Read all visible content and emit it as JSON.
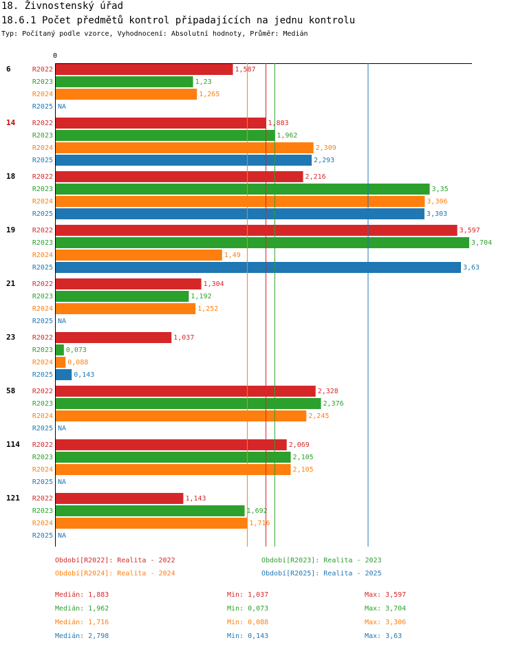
{
  "page": {
    "title": "18. Živnostenský úřad",
    "subtitle": "18.6.1 Počet předmětů kontrol připadajících na jednu kontrolu",
    "meta": "Typ: Počítaný podle vzorce, Vyhodnocení: Absolutní hodnoty, Průměr: Medián"
  },
  "colors": {
    "R2022": "#d62728",
    "R2023": "#2ca02c",
    "R2024": "#ff7f0e",
    "R2025": "#1f77b4",
    "highlight": "#cc0000"
  },
  "chart_data": {
    "type": "bar",
    "orientation": "horizontal",
    "x_tick_label": "0",
    "xlim": [
      0,
      3.704
    ],
    "series_names": [
      "R2022",
      "R2023",
      "R2024",
      "R2025"
    ],
    "groups": [
      {
        "label": "6",
        "highlight": false,
        "values": [
          1.587,
          1.23,
          1.265,
          null
        ],
        "labels": [
          "1,587",
          "1,23",
          "1,265",
          "NA"
        ]
      },
      {
        "label": "14",
        "highlight": true,
        "values": [
          1.883,
          1.962,
          2.309,
          2.293
        ],
        "labels": [
          "1,883",
          "1,962",
          "2,309",
          "2,293"
        ]
      },
      {
        "label": "18",
        "highlight": false,
        "values": [
          2.216,
          3.35,
          3.306,
          3.303
        ],
        "labels": [
          "2,216",
          "3,35",
          "3,306",
          "3,303"
        ]
      },
      {
        "label": "19",
        "highlight": false,
        "values": [
          3.597,
          3.704,
          1.49,
          3.63
        ],
        "labels": [
          "3,597",
          "3,704",
          "1,49",
          "3,63"
        ]
      },
      {
        "label": "21",
        "highlight": false,
        "values": [
          1.304,
          1.192,
          1.252,
          null
        ],
        "labels": [
          "1,304",
          "1,192",
          "1,252",
          "NA"
        ]
      },
      {
        "label": "23",
        "highlight": false,
        "values": [
          1.037,
          0.073,
          0.088,
          0.143
        ],
        "labels": [
          "1,037",
          "0,073",
          "0,088",
          "0,143"
        ]
      },
      {
        "label": "58",
        "highlight": false,
        "values": [
          2.328,
          2.376,
          2.245,
          null
        ],
        "labels": [
          "2,328",
          "2,376",
          "2,245",
          "NA"
        ]
      },
      {
        "label": "114",
        "highlight": false,
        "values": [
          2.069,
          2.105,
          2.105,
          null
        ],
        "labels": [
          "2,069",
          "2,105",
          "2,105",
          "NA"
        ]
      },
      {
        "label": "121",
        "highlight": false,
        "values": [
          1.143,
          1.692,
          1.716,
          null
        ],
        "labels": [
          "1,143",
          "1,692",
          "1,716",
          "NA"
        ]
      }
    ],
    "median_lines": [
      {
        "series": "R2022",
        "value": 1.883
      },
      {
        "series": "R2023",
        "value": 1.962
      },
      {
        "series": "R2024",
        "value": 1.716
      },
      {
        "series": "R2025",
        "value": 2.798
      }
    ]
  },
  "legend": [
    {
      "series": "R2022",
      "text": "Období[R2022]: Realita - 2022"
    },
    {
      "series": "R2023",
      "text": "Období[R2023]: Realita - 2023"
    },
    {
      "series": "R2024",
      "text": "Období[R2024]: Realita - 2024"
    },
    {
      "series": "R2025",
      "text": "Období[R2025]: Realita - 2025"
    }
  ],
  "stats": [
    {
      "series": "R2022",
      "median": "Medián: 1,883",
      "min": "Min: 1,037",
      "max": "Max: 3,597"
    },
    {
      "series": "R2023",
      "median": "Medián: 1,962",
      "min": "Min: 0,073",
      "max": "Max: 3,704"
    },
    {
      "series": "R2024",
      "median": "Medián: 1,716",
      "min": "Min: 0,088",
      "max": "Max: 3,306"
    },
    {
      "series": "R2025",
      "median": "Medián: 2,798",
      "min": "Min: 0,143",
      "max": "Max: 3,63"
    }
  ]
}
